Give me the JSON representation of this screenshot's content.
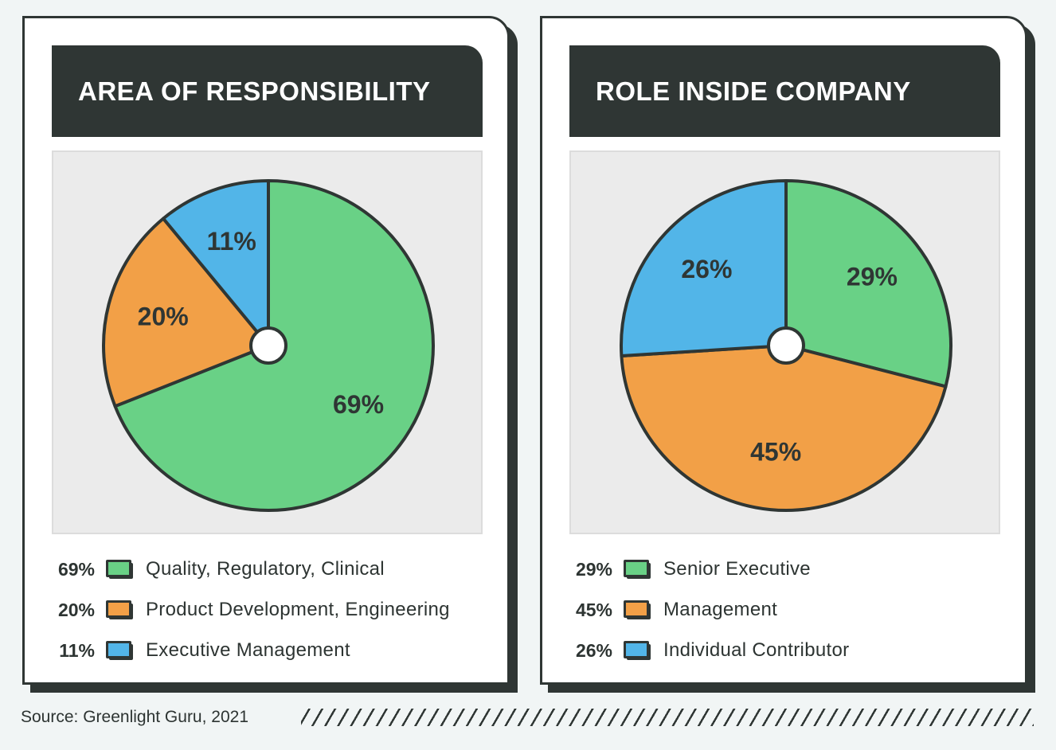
{
  "colors": {
    "green": "#69d186",
    "orange": "#f2a047",
    "blue": "#52b5e8",
    "dark": "#2f3634"
  },
  "panels": [
    {
      "title": "AREA OF RESPONSIBILITY",
      "legend": [
        {
          "pct": "69%",
          "label": "Quality, Regulatory, Clinical",
          "color": "#69d186"
        },
        {
          "pct": "20%",
          "label": "Product Development, Engineering",
          "color": "#f2a047"
        },
        {
          "pct": "11%",
          "label": "Executive Management",
          "color": "#52b5e8"
        }
      ]
    },
    {
      "title": "ROLE INSIDE COMPANY",
      "legend": [
        {
          "pct": "29%",
          "label": "Senior Executive",
          "color": "#69d186"
        },
        {
          "pct": "45%",
          "label": "Management",
          "color": "#f2a047"
        },
        {
          "pct": "26%",
          "label": "Individual Contributor",
          "color": "#52b5e8"
        }
      ]
    }
  ],
  "chart_data": [
    {
      "type": "pie",
      "title": "AREA OF RESPONSIBILITY",
      "categories": [
        "Quality, Regulatory, Clinical",
        "Product Development, Engineering",
        "Executive Management"
      ],
      "values": [
        69,
        20,
        11
      ],
      "labels": [
        "69%",
        "20%",
        "11%"
      ],
      "colors": [
        "#69d186",
        "#f2a047",
        "#52b5e8"
      ]
    },
    {
      "type": "pie",
      "title": "ROLE INSIDE COMPANY",
      "categories": [
        "Senior Executive",
        "Management",
        "Individual Contributor"
      ],
      "values": [
        29,
        45,
        26
      ],
      "labels": [
        "29%",
        "45%",
        "26%"
      ],
      "colors": [
        "#69d186",
        "#f2a047",
        "#52b5e8"
      ]
    }
  ],
  "footer": {
    "source": "Source: Greenlight Guru, 2021"
  }
}
